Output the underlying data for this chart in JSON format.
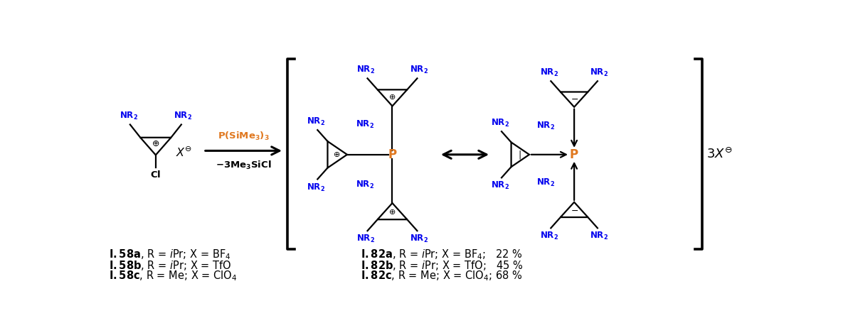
{
  "figsize": [
    11.85,
    4.48
  ],
  "dpi": 100,
  "blue": "#0000EE",
  "orange": "#E07820",
  "black": "#000000",
  "white": "#FFFFFF",
  "lw_struct": 1.6,
  "lw_bracket": 2.5,
  "lw_arrow": 2.0,
  "fs_nr2": 8.5,
  "fs_label": 10.5,
  "fs_P": 12,
  "fs_sym": 8,
  "fs_3x": 13,
  "xlim": [
    0,
    11.85
  ],
  "ylim": [
    0,
    4.48
  ]
}
